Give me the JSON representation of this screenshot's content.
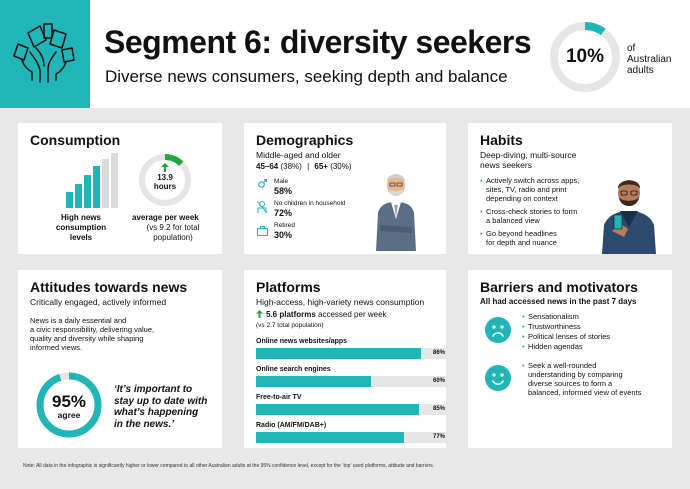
{
  "header": {
    "title": "Segment 6: diversity seekers",
    "subtitle": "Diverse news consumers, seeking depth and balance",
    "percent": "10%",
    "percent_caption": [
      "of",
      "Australian",
      "adults"
    ],
    "accent_color": "#20b5b7"
  },
  "consumption": {
    "title": "Consumption",
    "bars_caption": [
      "High news",
      "consumption",
      "levels"
    ],
    "hours_value": "13.9",
    "hours_unit": "hours",
    "per_week": "average per week",
    "compare": [
      "(vs 9.2 for total",
      "population)"
    ]
  },
  "demographics": {
    "title": "Demographics",
    "subtitle": "Middle-aged and older",
    "age_a": "45–64",
    "age_a_pct": "(38%)",
    "age_sep": "|",
    "age_b": "65+",
    "age_b_pct": "(30%)",
    "stats": [
      {
        "label": "Male",
        "value": "58%"
      },
      {
        "label": "No children in household",
        "value": "72%"
      },
      {
        "label": "Retired",
        "value": "30%"
      }
    ]
  },
  "habits": {
    "title": "Habits",
    "subtitle": [
      "Deep-diving, multi-source",
      "news seekers"
    ],
    "bullets": [
      [
        "Actively switch across apps,",
        "sites, TV, radio and print",
        "depending on context"
      ],
      [
        "Cross-check stories to form",
        "a balanced view"
      ],
      [
        "Go beyond headlines",
        "for depth and nuance"
      ]
    ]
  },
  "attitudes": {
    "title": "Attitudes towards news",
    "subtitle": "Critically engaged, actively informed",
    "body": [
      "News is a daily essential and",
      "a civic responsibility, delivering value,",
      "quality and diversity while shaping",
      "informed views."
    ],
    "agree_value": "95%",
    "agree_label": "agree",
    "quote": [
      "‘It’s important to",
      "stay up to date with",
      "what’s happening",
      "in the news.’"
    ]
  },
  "platforms": {
    "title": "Platforms",
    "subtitle": "High-access, high-variety news consumption",
    "platform_count": "5.6 platforms",
    "platform_suffix": "accessed per week",
    "compare": "(vs 2.7 total population)",
    "bars": [
      {
        "label": "Online news websites/apps",
        "value": 86,
        "text": "86%"
      },
      {
        "label": "Online search engines",
        "value": 60,
        "text": "60%"
      },
      {
        "label": "Free-to-air TV",
        "value": 85,
        "text": "85%"
      },
      {
        "label": "Radio (AM/FM/DAB+)",
        "value": 77,
        "text": "77%"
      }
    ]
  },
  "barriers": {
    "title": "Barriers and motivators",
    "subtitle": "All had accessed news in the past 7 days",
    "barrier_items": [
      "Sensationalism",
      "Trustworthiness",
      "Political lenses of stories",
      "Hidden agendas"
    ],
    "motivator": [
      "Seek a well-rounded",
      "understanding by comparing",
      "diverse sources to form a",
      "balanced, informed view of events"
    ]
  },
  "note": "Note: All data in the infographic is significantly higher or lower compared to all other Australian adults at the 95% confidence level, except for the ‘top’ used platforms, attitude and barriers."
}
